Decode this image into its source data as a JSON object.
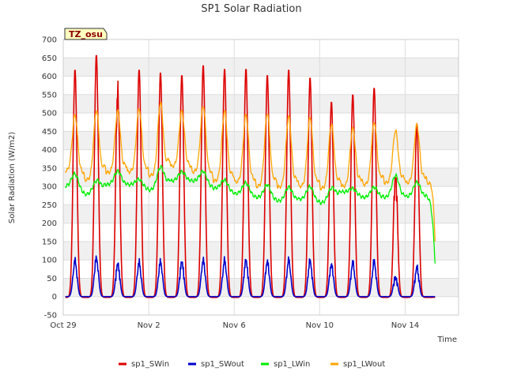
{
  "chart_data": {
    "type": "line",
    "title": "SP1 Solar Radiation",
    "xlabel": "Time",
    "ylabel": "Solar Radiation (W/m2)",
    "badge": "TZ_osu",
    "ylim": [
      -50,
      700
    ],
    "yticks": [
      -50,
      0,
      50,
      100,
      150,
      200,
      250,
      300,
      350,
      400,
      450,
      500,
      550,
      600,
      650,
      700
    ],
    "xlim": [
      0,
      18.5
    ],
    "xticks": [
      {
        "value": 0,
        "label": "Oct 29"
      },
      {
        "value": 4,
        "label": "Nov 2"
      },
      {
        "value": 8,
        "label": "Nov 6"
      },
      {
        "value": 12,
        "label": "Nov 10"
      },
      {
        "value": 16,
        "label": "Nov 14"
      }
    ],
    "grid": true,
    "legend_position": "bottom",
    "day_peak_times": [
      0.55,
      1.55,
      2.55,
      3.55,
      4.55,
      5.55,
      6.55,
      7.55,
      8.55,
      9.55,
      10.55,
      11.55,
      12.55,
      13.55,
      14.55,
      15.55,
      16.55,
      17.55
    ],
    "series": [
      {
        "name": "sp1_SWin",
        "color": "#dd0000",
        "night": -2,
        "peaks": [
          620,
          660,
          598,
          620,
          612,
          605,
          632,
          622,
          622,
          605,
          620,
          598,
          532,
          552,
          570,
          370,
          472,
          0
        ]
      },
      {
        "name": "sp1_SWout",
        "color": "#0000cc",
        "night": 0,
        "peaks": [
          110,
          118,
          102,
          105,
          108,
          108,
          112,
          110,
          112,
          108,
          112,
          110,
          100,
          105,
          108,
          65,
          92,
          0
        ]
      },
      {
        "name": "sp1_LWin",
        "color": "#00ee00",
        "night": 0,
        "base": [
          300,
          278,
          305,
          305,
          290,
          315,
          315,
          295,
          280,
          270,
          260,
          265,
          255,
          285,
          270,
          270,
          272,
          272
        ],
        "peaks": [
          335,
          315,
          342,
          320,
          352,
          340,
          342,
          318,
          310,
          305,
          298,
          300,
          295,
          295,
          298,
          330,
          312,
          0
        ]
      },
      {
        "name": "sp1_LWout",
        "color": "#ffa500",
        "night": 0,
        "base": [
          342,
          318,
          338,
          340,
          330,
          355,
          340,
          315,
          312,
          300,
          298,
          300,
          295,
          300,
          305,
          310,
          310,
          310
        ],
        "peaks": [
          495,
          507,
          505,
          512,
          528,
          505,
          520,
          505,
          495,
          500,
          490,
          488,
          470,
          458,
          475,
          452,
          468,
          0
        ]
      }
    ]
  }
}
